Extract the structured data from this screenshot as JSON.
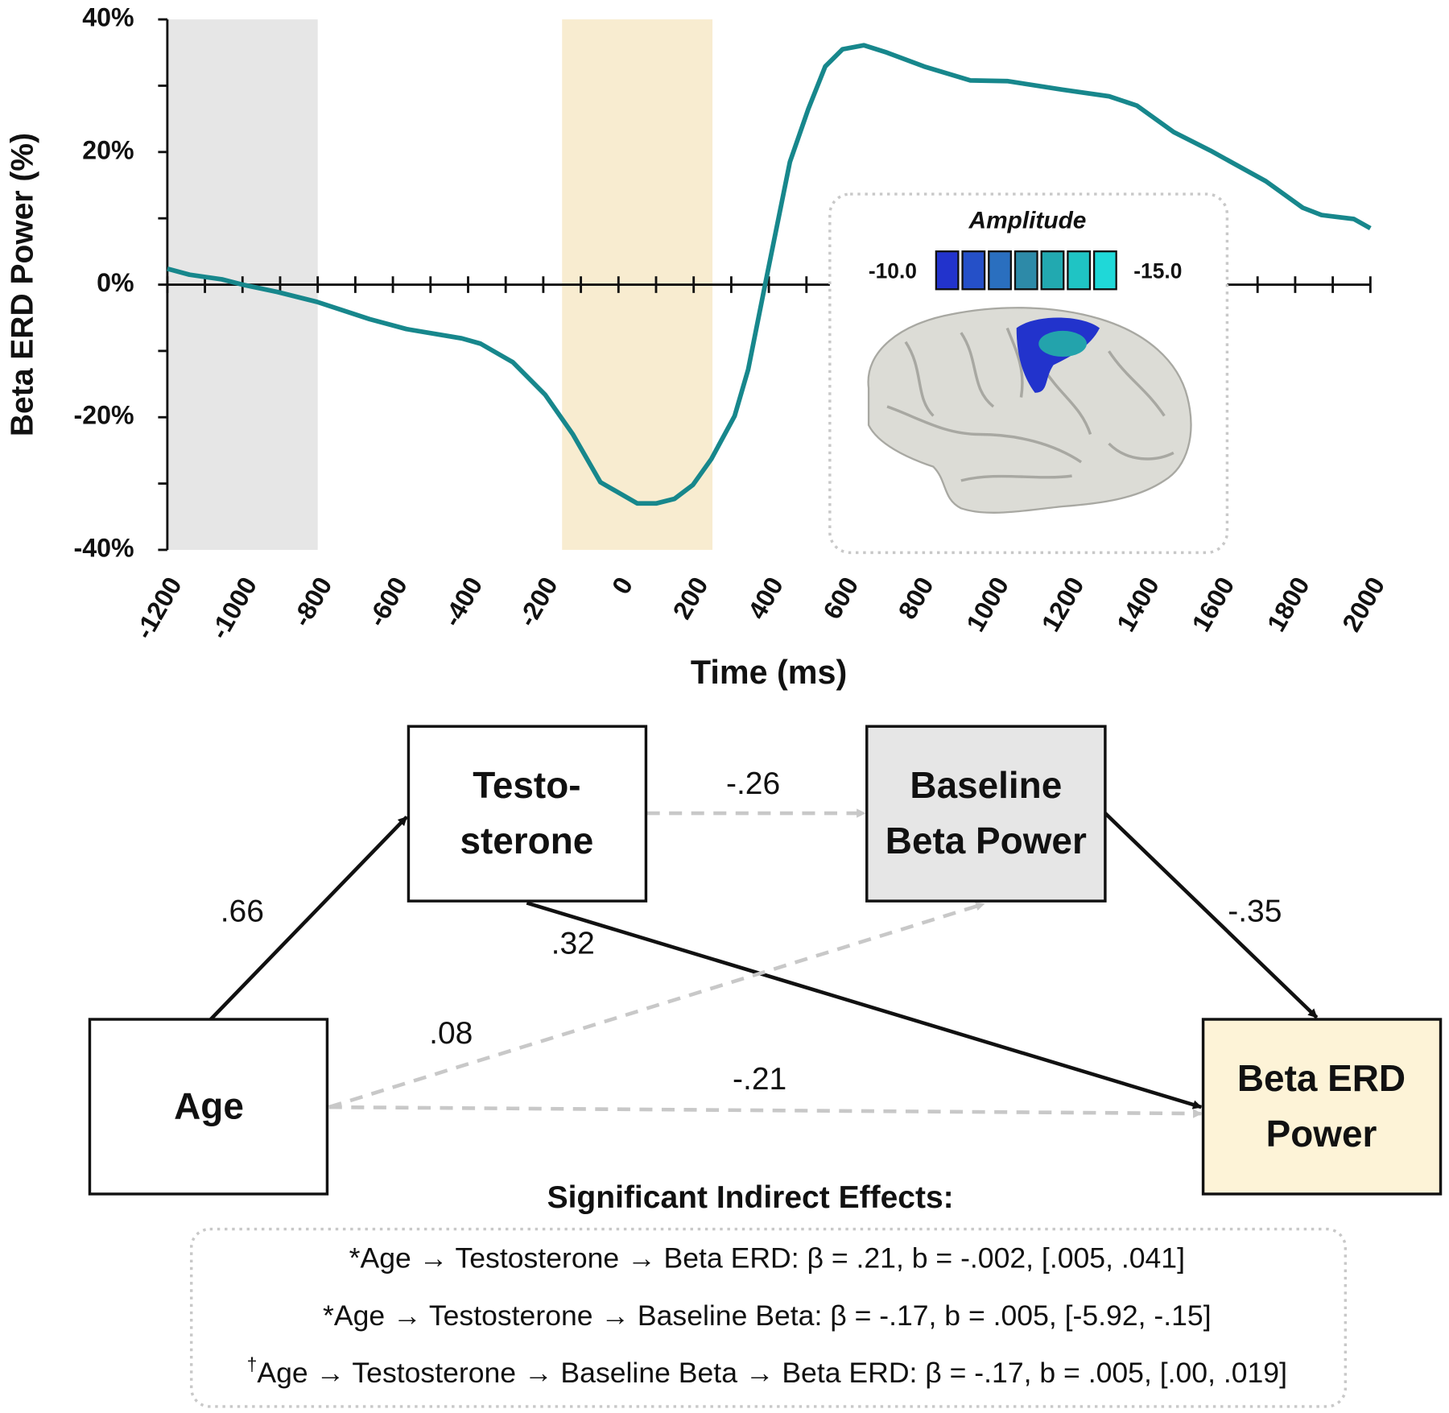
{
  "chart_data": {
    "type": "line",
    "ylabel": "Beta ERD Power (%)",
    "xlabel": "Time (ms)",
    "xlim": [
      -1200,
      2000
    ],
    "ylim": [
      -40,
      40
    ],
    "xticks": [
      -1200,
      -1000,
      -800,
      -600,
      -400,
      -200,
      0,
      200,
      400,
      600,
      800,
      1000,
      1200,
      1400,
      1600,
      1800,
      2000
    ],
    "yticks": [
      {
        "value": 40,
        "label": "40%"
      },
      {
        "value": 20,
        "label": "20%"
      },
      {
        "value": 0,
        "label": "0%"
      },
      {
        "value": -20,
        "label": "-20%"
      },
      {
        "value": -40,
        "label": "-40%"
      }
    ],
    "shaded": [
      {
        "from": -1200,
        "to": -800,
        "color": "#e6e6e6"
      },
      {
        "from": -150,
        "to": 250,
        "color": "#f8ecd0"
      }
    ],
    "series": [
      {
        "color": "#17878c",
        "x": [
          -1200,
          -1141,
          -1055,
          -1000,
          -908,
          -802,
          -662,
          -564,
          -417,
          -367,
          -281,
          -195,
          -121,
          -48,
          50,
          100,
          149,
          198,
          247,
          309,
          345,
          390,
          456,
          505,
          550,
          596,
          653,
          714,
          813,
          936,
          1034,
          1182,
          1305,
          1379,
          1477,
          1575,
          1722,
          1820,
          1870,
          1956,
          2000
        ],
        "values": [
          2.4,
          1.5,
          0.8,
          0,
          -1.1,
          -2.6,
          -5.2,
          -6.7,
          -8.1,
          -8.9,
          -11.7,
          -16.6,
          -22.6,
          -29.8,
          -33,
          -33,
          -32.3,
          -30.2,
          -26.3,
          -19.8,
          -12.8,
          0,
          18.5,
          26.5,
          32.9,
          35.5,
          36.1,
          35,
          32.9,
          30.8,
          30.7,
          29.4,
          28.4,
          27,
          23,
          20.2,
          15.6,
          11.6,
          10.5,
          9.9,
          8.5
        ]
      }
    ],
    "inset": {
      "title": "Amplitude",
      "low_label": "-10.0",
      "high_label": "-15.0",
      "colors": [
        "#2233cc",
        "#2550c8",
        "#2a6fbf",
        "#2d8aa8",
        "#22a9b0",
        "#1fc4c4",
        "#1fd8d8"
      ]
    }
  },
  "diagram": {
    "nodes": [
      {
        "lines": [
          "Age"
        ]
      },
      {
        "lines": [
          "Testo-",
          "sterone"
        ]
      },
      {
        "lines": [
          "Baseline",
          "Beta Power"
        ]
      },
      {
        "lines": [
          "Beta ERD",
          "Power"
        ]
      }
    ],
    "edges": [
      {
        "label": ".66"
      },
      {
        "label": "-.26"
      },
      {
        "label": "-.35"
      },
      {
        "label": ".32"
      },
      {
        "label": ".08"
      },
      {
        "label": "-.21"
      }
    ],
    "indirect": {
      "title": "Significant Indirect Effects:",
      "lines": [
        {
          "mark": "*",
          "text": "Age → Testosterone → Beta ERD: β = .21, b = -.002, [.005, .041]"
        },
        {
          "mark": "*",
          "text": "Age → Testosterone → Baseline Beta: β = -.17, b = .005, [-5.92, -.15]"
        },
        {
          "mark": "†",
          "text": "Age → Testosterone → Baseline Beta → Beta ERD: β = -.17, b = .005, [.00, .019]"
        }
      ]
    }
  }
}
